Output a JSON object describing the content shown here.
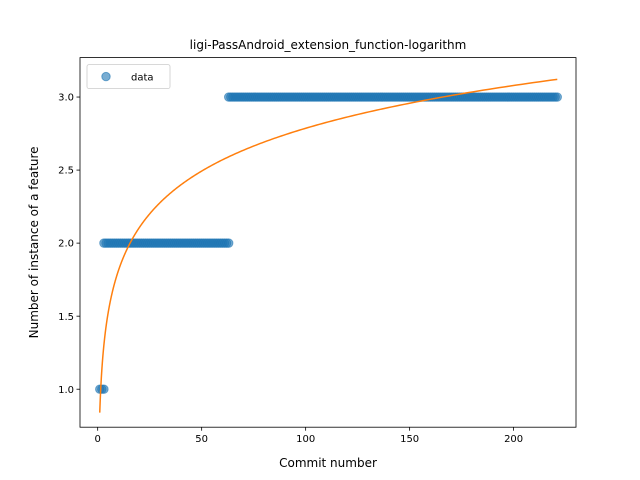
{
  "chart_data": {
    "type": "scatter",
    "title": "ligi-PassAndroid_extension_function-logarithm",
    "xlabel": "Commit number",
    "ylabel": "Number of instance of a feature",
    "xlim": [
      -8.5,
      230
    ],
    "ylim": [
      0.74,
      3.27
    ],
    "xticks": [
      0,
      50,
      100,
      150,
      200
    ],
    "yticks": [
      1.0,
      1.5,
      2.0,
      2.5,
      3.0
    ],
    "ytick_labels": [
      "1.0",
      "1.5",
      "2.0",
      "2.5",
      "3.0"
    ],
    "grid": false,
    "legend": {
      "position": "top-left",
      "entries": [
        "data"
      ]
    },
    "colors": {
      "data": "#1f77b4",
      "fit": "#ff7f0e"
    },
    "series": [
      {
        "name": "data",
        "kind": "points",
        "segments": [
          {
            "x_start": 1,
            "x_end": 3,
            "y": 1.0
          },
          {
            "x_start": 3,
            "x_end": 63,
            "y": 2.0
          },
          {
            "x_start": 63,
            "x_end": 221,
            "y": 3.0
          }
        ]
      },
      {
        "kind": "line",
        "model": "a + b*ln(x)",
        "a": 0.84,
        "b": 0.4226,
        "x_range": [
          1,
          221
        ]
      }
    ]
  }
}
